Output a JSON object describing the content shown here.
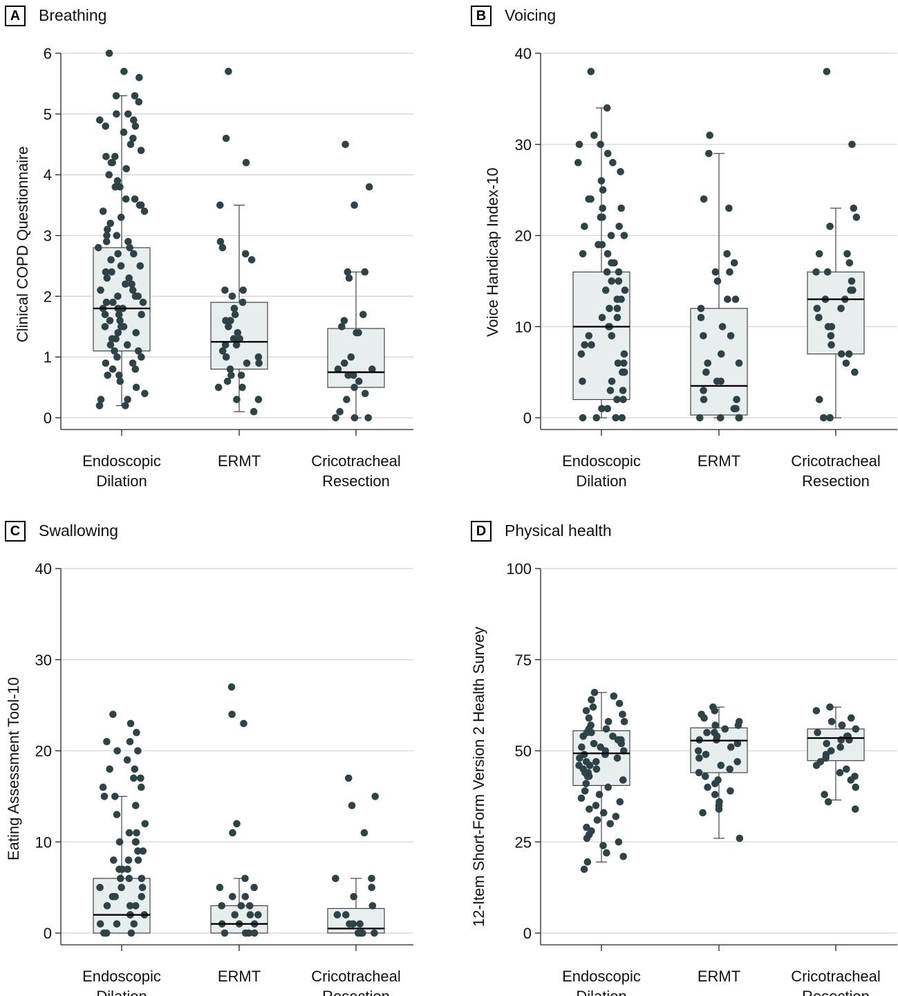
{
  "chart_data": [
    {
      "panel": "A",
      "title": "Breathing",
      "type": "box",
      "ylabel": "Clinical COPD Questionnaire",
      "ylim": [
        0,
        6
      ],
      "yticks": [
        0,
        1,
        2,
        3,
        4,
        5,
        6
      ],
      "categories": [
        "Endoscopic\nDilation",
        "ERMT",
        "Cricotracheal\nResection"
      ],
      "grid": true,
      "boxes": [
        {
          "q1": 1.1,
          "median": 1.8,
          "q3": 2.8,
          "whisker_low": 0.2,
          "whisker_high": 5.3
        },
        {
          "q1": 0.8,
          "median": 1.25,
          "q3": 1.9,
          "whisker_low": 0.1,
          "whisker_high": 3.5
        },
        {
          "q1": 0.5,
          "median": 0.75,
          "q3": 1.47,
          "whisker_low": 0.0,
          "whisker_high": 2.4
        }
      ],
      "points": [
        [
          6.0,
          5.7,
          5.6,
          5.3,
          5.3,
          5.2,
          5.0,
          5.0,
          4.9,
          4.9,
          4.8,
          4.8,
          4.7,
          4.6,
          4.5,
          4.4,
          4.3,
          4.3,
          4.2,
          4.2,
          4.1,
          4.0,
          3.9,
          3.8,
          3.8,
          3.6,
          3.6,
          3.5,
          3.5,
          3.4,
          3.4,
          3.3,
          3.2,
          3.1,
          3.0,
          3.0,
          2.9,
          2.9,
          2.8,
          2.8,
          2.7,
          2.7,
          2.6,
          2.5,
          2.5,
          2.4,
          2.4,
          2.3,
          2.3,
          2.2,
          2.2,
          2.1,
          2.1,
          2.0,
          2.0,
          2.0,
          1.9,
          1.9,
          1.9,
          1.8,
          1.8,
          1.8,
          1.7,
          1.7,
          1.7,
          1.6,
          1.6,
          1.5,
          1.5,
          1.5,
          1.4,
          1.4,
          1.3,
          1.3,
          1.2,
          1.2,
          1.1,
          1.1,
          1.0,
          1.0,
          0.9,
          0.9,
          0.8,
          0.8,
          0.7,
          0.7,
          0.6,
          0.5,
          0.4,
          0.3,
          0.3,
          0.2,
          0.2
        ],
        [
          5.7,
          4.6,
          4.2,
          3.5,
          2.9,
          2.8,
          2.7,
          2.6,
          2.1,
          2.1,
          2.0,
          1.9,
          1.8,
          1.7,
          1.6,
          1.6,
          1.5,
          1.4,
          1.3,
          1.3,
          1.2,
          1.2,
          1.1,
          1.0,
          1.0,
          0.9,
          0.9,
          0.8,
          0.7,
          0.7,
          0.6,
          0.5,
          0.5,
          0.3,
          0.3,
          0.1
        ],
        [
          4.5,
          3.8,
          3.5,
          2.4,
          2.4,
          2.3,
          1.7,
          1.6,
          1.5,
          1.4,
          1.4,
          1.0,
          0.9,
          0.8,
          0.8,
          0.7,
          0.7,
          0.6,
          0.5,
          0.4,
          0.3,
          0.1,
          0.0,
          0.0,
          0.0
        ]
      ]
    },
    {
      "panel": "B",
      "title": "Voicing",
      "type": "box",
      "ylabel": "Voice Handicap Index-10",
      "ylim": [
        0,
        40
      ],
      "yticks": [
        0,
        10,
        20,
        30,
        40
      ],
      "categories": [
        "Endoscopic\nDilation",
        "ERMT",
        "Cricotracheal\nResection"
      ],
      "grid": true,
      "boxes": [
        {
          "q1": 2,
          "median": 10,
          "q3": 16,
          "whisker_low": 0,
          "whisker_high": 34
        },
        {
          "q1": 0.3,
          "median": 3.5,
          "q3": 12,
          "whisker_low": 0,
          "whisker_high": 29
        },
        {
          "q1": 7,
          "median": 13,
          "q3": 16,
          "whisker_low": 0,
          "whisker_high": 23
        }
      ],
      "points": [
        [
          38,
          34,
          31,
          30,
          30,
          29,
          28,
          28,
          27,
          26,
          25,
          24,
          24,
          23,
          23,
          22,
          22,
          21,
          21,
          20,
          20,
          19,
          19,
          18,
          18,
          17,
          17,
          16,
          16,
          15,
          15,
          14,
          14,
          13,
          13,
          12,
          12,
          11,
          11,
          10,
          10,
          9,
          9,
          8,
          8,
          7,
          7,
          6,
          6,
          5,
          5,
          4,
          4,
          3,
          3,
          2,
          2,
          1,
          1,
          0,
          0,
          0,
          0
        ],
        [
          31,
          29,
          24,
          23,
          18,
          17,
          16,
          16,
          15,
          13,
          13,
          12,
          11,
          10,
          9,
          9,
          7,
          6,
          6,
          5,
          4,
          4,
          3,
          2,
          2,
          1,
          1,
          0,
          0,
          0,
          0
        ],
        [
          38,
          30,
          23,
          22,
          21,
          18,
          18,
          17,
          16,
          16,
          15,
          14,
          14,
          13,
          13,
          12,
          12,
          11,
          10,
          10,
          9,
          8,
          7,
          7,
          6,
          5,
          2,
          0,
          0,
          0
        ]
      ]
    },
    {
      "panel": "C",
      "title": "Swallowing",
      "type": "box",
      "ylabel": "Eating Assessment Tool-10",
      "ylim": [
        0,
        40
      ],
      "yticks": [
        0,
        10,
        20,
        30,
        40
      ],
      "categories": [
        "Endoscopic\nDilation",
        "ERMT",
        "Cricotracheal\nResection"
      ],
      "grid": true,
      "boxes": [
        {
          "q1": 0,
          "median": 2,
          "q3": 6,
          "whisker_low": 0,
          "whisker_high": 15
        },
        {
          "q1": 0,
          "median": 1,
          "q3": 3,
          "whisker_low": 0,
          "whisker_high": 6
        },
        {
          "q1": 0,
          "median": 0.5,
          "q3": 2.7,
          "whisker_low": 0,
          "whisker_high": 6
        }
      ],
      "points": [
        [
          24,
          23,
          22,
          21,
          21,
          20,
          20,
          19,
          18,
          18,
          17,
          17,
          16,
          16,
          15,
          15,
          14,
          13,
          12,
          11,
          11,
          10,
          10,
          10,
          9,
          9,
          8,
          8,
          8,
          7,
          7,
          7,
          6,
          6,
          6,
          5,
          5,
          5,
          4,
          4,
          4,
          3,
          3,
          3,
          2,
          2,
          2,
          1,
          1,
          1,
          0,
          0,
          0,
          0
        ],
        [
          27,
          24,
          23,
          12,
          11,
          6,
          5,
          5,
          4,
          4,
          3,
          3,
          3,
          2,
          2,
          2,
          1,
          1,
          1,
          0,
          0,
          0,
          0
        ],
        [
          17,
          15,
          14,
          11,
          6,
          6,
          5,
          4,
          3,
          2,
          2,
          1,
          1,
          1,
          0,
          0,
          0,
          0
        ]
      ]
    },
    {
      "panel": "D",
      "title": "Physical health",
      "type": "box",
      "ylabel": "12-Item Short-Form Version 2 Health Survey",
      "ylim": [
        0,
        100
      ],
      "yticks": [
        0,
        25,
        50,
        75,
        100
      ],
      "categories": [
        "Endoscopic\nDilation",
        "ERMT",
        "Cricotracheal\nResection"
      ],
      "grid": true,
      "boxes": [
        {
          "q1": 40.5,
          "median": 49.3,
          "q3": 55.5,
          "whisker_low": 19.5,
          "whisker_high": 66
        },
        {
          "q1": 44,
          "median": 52.8,
          "q3": 56.3,
          "whisker_low": 26,
          "whisker_high": 62
        },
        {
          "q1": 47.3,
          "median": 53.5,
          "q3": 56,
          "whisker_low": 36.5,
          "whisker_high": 62
        }
      ],
      "points": [
        [
          66,
          65,
          64,
          63,
          62,
          61,
          60,
          59,
          58,
          58,
          57,
          56,
          56,
          55,
          55,
          54,
          54,
          53,
          53,
          52,
          52,
          51,
          51,
          50,
          50,
          49,
          49,
          48,
          48,
          47,
          47,
          46,
          46,
          45,
          45,
          44,
          44,
          43,
          43,
          42,
          41,
          40,
          39,
          38,
          37,
          36,
          35,
          34,
          33,
          32,
          31,
          30,
          29,
          28,
          27,
          26,
          25,
          24,
          22,
          21,
          19.5,
          17.5
        ],
        [
          62,
          61,
          60,
          59,
          58,
          57,
          57,
          56,
          55,
          55,
          54,
          53,
          53,
          52,
          51,
          50,
          49,
          48,
          47,
          46,
          45,
          44,
          43,
          42,
          41,
          40,
          39,
          38,
          36,
          35,
          34,
          33,
          26
        ],
        [
          62,
          61,
          59,
          58,
          57,
          57,
          56,
          55,
          54,
          54,
          53,
          53,
          52,
          51,
          50,
          49,
          48,
          47,
          46,
          45,
          44,
          43,
          42,
          40,
          38,
          36,
          34
        ]
      ]
    }
  ]
}
